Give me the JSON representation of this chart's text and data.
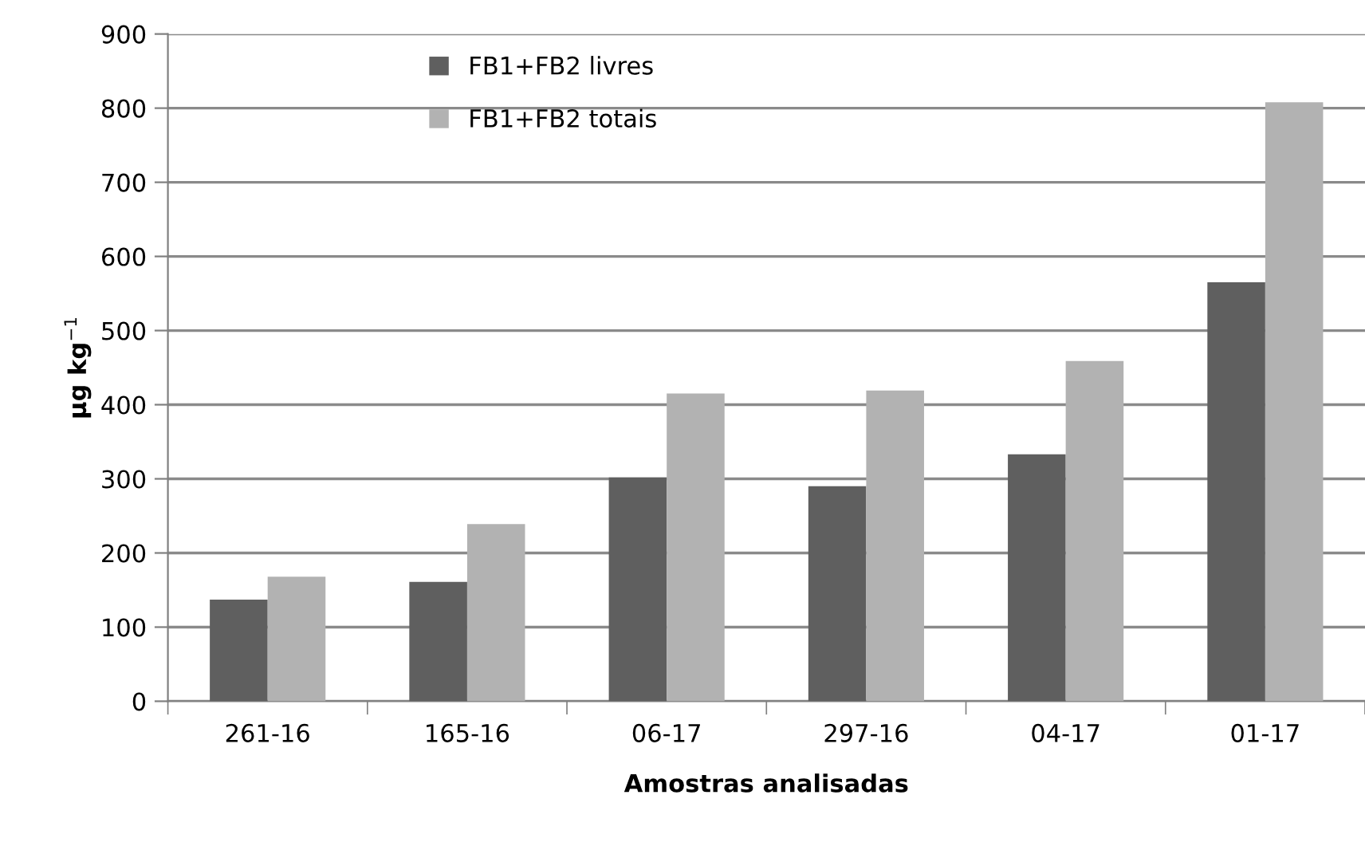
{
  "chart_data": {
    "type": "bar",
    "xlabel": "Amostras analisadas",
    "ylabel": "µg kg$^{−1}$",
    "categories": [
      "261-16",
      "165-16",
      "06-17",
      "297-16",
      "04-17",
      "01-17"
    ],
    "series": [
      {
        "name": "FB1+FB2 livres",
        "color": "#5f5f5f",
        "values": [
          137,
          161,
          302,
          290,
          333,
          565
        ]
      },
      {
        "name": "FB1+FB2 totais",
        "color": "#b2b2b2",
        "values": [
          168,
          239,
          415,
          419,
          459,
          808
        ]
      }
    ],
    "ylim": [
      0,
      900
    ],
    "yticks": [
      0,
      100,
      200,
      300,
      400,
      500,
      600,
      700,
      800,
      900
    ],
    "grid": "y",
    "legend": "top left"
  }
}
